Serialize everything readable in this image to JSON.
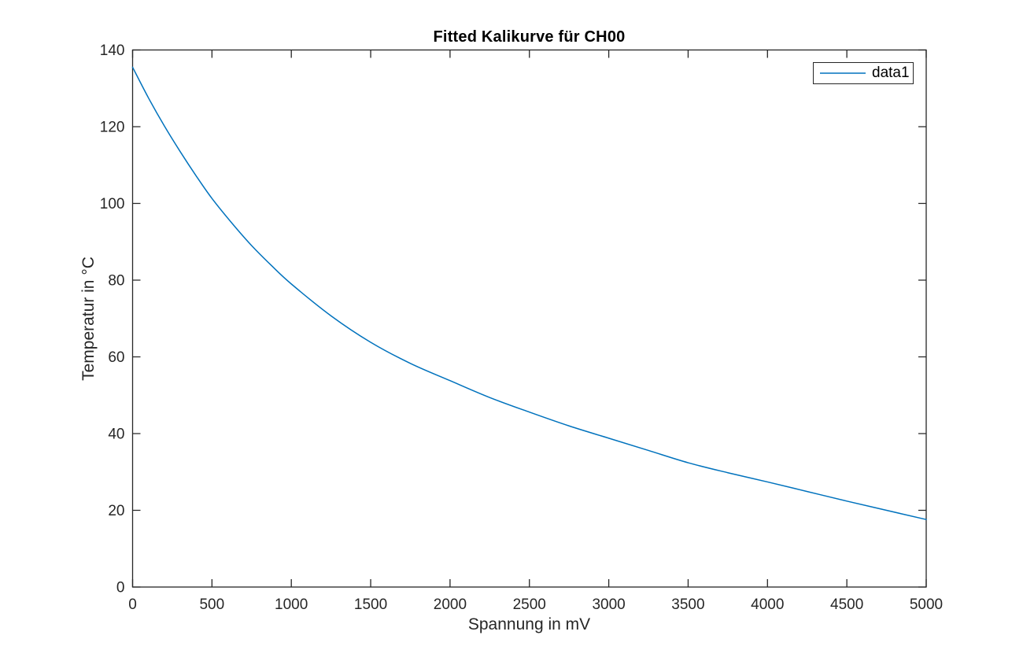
{
  "figure": {
    "background": "#ffffff"
  },
  "chart_data": {
    "type": "line",
    "title": "Fitted Kalikurve für CH00",
    "xlabel": "Spannung in mV",
    "ylabel": "Temperatur in °C",
    "xlim": [
      0,
      5000
    ],
    "ylim": [
      0,
      140
    ],
    "x_ticks": [
      0,
      500,
      1000,
      1500,
      2000,
      2500,
      3000,
      3500,
      4000,
      4500,
      5000
    ],
    "y_ticks": [
      0,
      20,
      40,
      60,
      80,
      100,
      120,
      140
    ],
    "grid": false,
    "box": true,
    "tick_direction": "in",
    "axis_color": "#262626",
    "legend": {
      "position": "top-right",
      "entries": [
        "data1"
      ]
    },
    "series": [
      {
        "name": "data1",
        "color": "#0072BD",
        "x": [
          0,
          100,
          200,
          300,
          400,
          500,
          625,
          750,
          875,
          1000,
          1250,
          1500,
          1750,
          2000,
          2250,
          2500,
          2750,
          3000,
          3250,
          3500,
          3750,
          4000,
          4250,
          4500,
          4750,
          5000
        ],
        "y": [
          135.5,
          127.5,
          120.2,
          113.5,
          107.2,
          101.3,
          94.9,
          89.0,
          83.8,
          79.0,
          70.7,
          63.8,
          58.3,
          53.8,
          49.4,
          45.6,
          42.0,
          38.8,
          35.6,
          32.4,
          29.8,
          27.4,
          24.9,
          22.4,
          20.0,
          17.6
        ]
      }
    ]
  }
}
